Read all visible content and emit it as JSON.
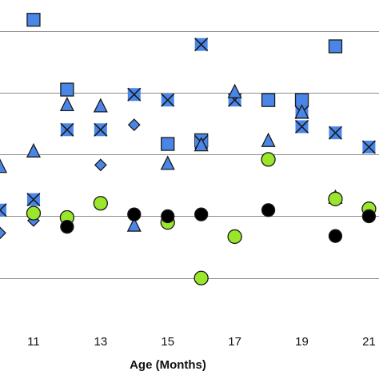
{
  "chart_data": {
    "type": "scatter",
    "title": "",
    "xlabel": "Age (Months)",
    "ylabel": "",
    "x_ticks": [
      11,
      13,
      15,
      17,
      19,
      21
    ],
    "xlim": [
      10,
      21.3
    ],
    "ylim": [
      0,
      5.5
    ],
    "y_gridlines": [
      1,
      2,
      3,
      4,
      5
    ],
    "grid": true,
    "colors": {
      "blue_fill": "#4a86e8",
      "green_fill": "#99e62b",
      "black_fill": "#000000",
      "edge": "#1a1a1a"
    },
    "series": [
      {
        "marker": "square",
        "points": [
          [
            11,
            5.18
          ],
          [
            12,
            4.05
          ],
          [
            15,
            3.17
          ],
          [
            16,
            3.23
          ],
          [
            18,
            3.88
          ],
          [
            19,
            3.88
          ],
          [
            20,
            4.75
          ]
        ]
      },
      {
        "marker": "x-square",
        "points": [
          [
            10,
            2.1
          ],
          [
            11,
            2.27
          ],
          [
            12,
            3.4
          ],
          [
            13,
            3.4
          ],
          [
            14,
            3.97
          ],
          [
            15,
            3.88
          ],
          [
            16,
            4.78
          ],
          [
            16,
            3.2
          ],
          [
            17,
            3.88
          ],
          [
            19,
            3.45
          ],
          [
            19,
            3.68
          ],
          [
            20,
            3.35
          ],
          [
            21,
            3.12
          ]
        ]
      },
      {
        "marker": "triangle",
        "points": [
          [
            10,
            2.8
          ],
          [
            11,
            3.05
          ],
          [
            12,
            3.8
          ],
          [
            13,
            3.78
          ],
          [
            14,
            1.85
          ],
          [
            15,
            2.85
          ],
          [
            16,
            3.15
          ],
          [
            17,
            4.01
          ],
          [
            18,
            3.22
          ],
          [
            19,
            3.68
          ],
          [
            20,
            2.3
          ]
        ]
      },
      {
        "marker": "diamond",
        "points": [
          [
            10,
            1.73
          ],
          [
            11,
            1.93
          ],
          [
            13,
            2.83
          ],
          [
            14,
            3.48
          ]
        ]
      },
      {
        "marker": "circle",
        "color": "green",
        "points": [
          [
            11,
            2.05
          ],
          [
            12,
            1.98
          ],
          [
            13,
            2.21
          ],
          [
            15,
            1.9
          ],
          [
            16,
            1.0
          ],
          [
            17,
            1.67
          ],
          [
            18,
            2.92
          ],
          [
            20,
            2.28
          ],
          [
            21,
            2.12
          ]
        ]
      },
      {
        "marker": "circle",
        "color": "black",
        "points": [
          [
            12,
            1.83
          ],
          [
            14,
            2.03
          ],
          [
            15,
            2.0
          ],
          [
            16,
            2.03
          ],
          [
            18,
            2.1
          ],
          [
            20,
            1.68
          ],
          [
            21,
            2.0
          ]
        ]
      }
    ]
  }
}
